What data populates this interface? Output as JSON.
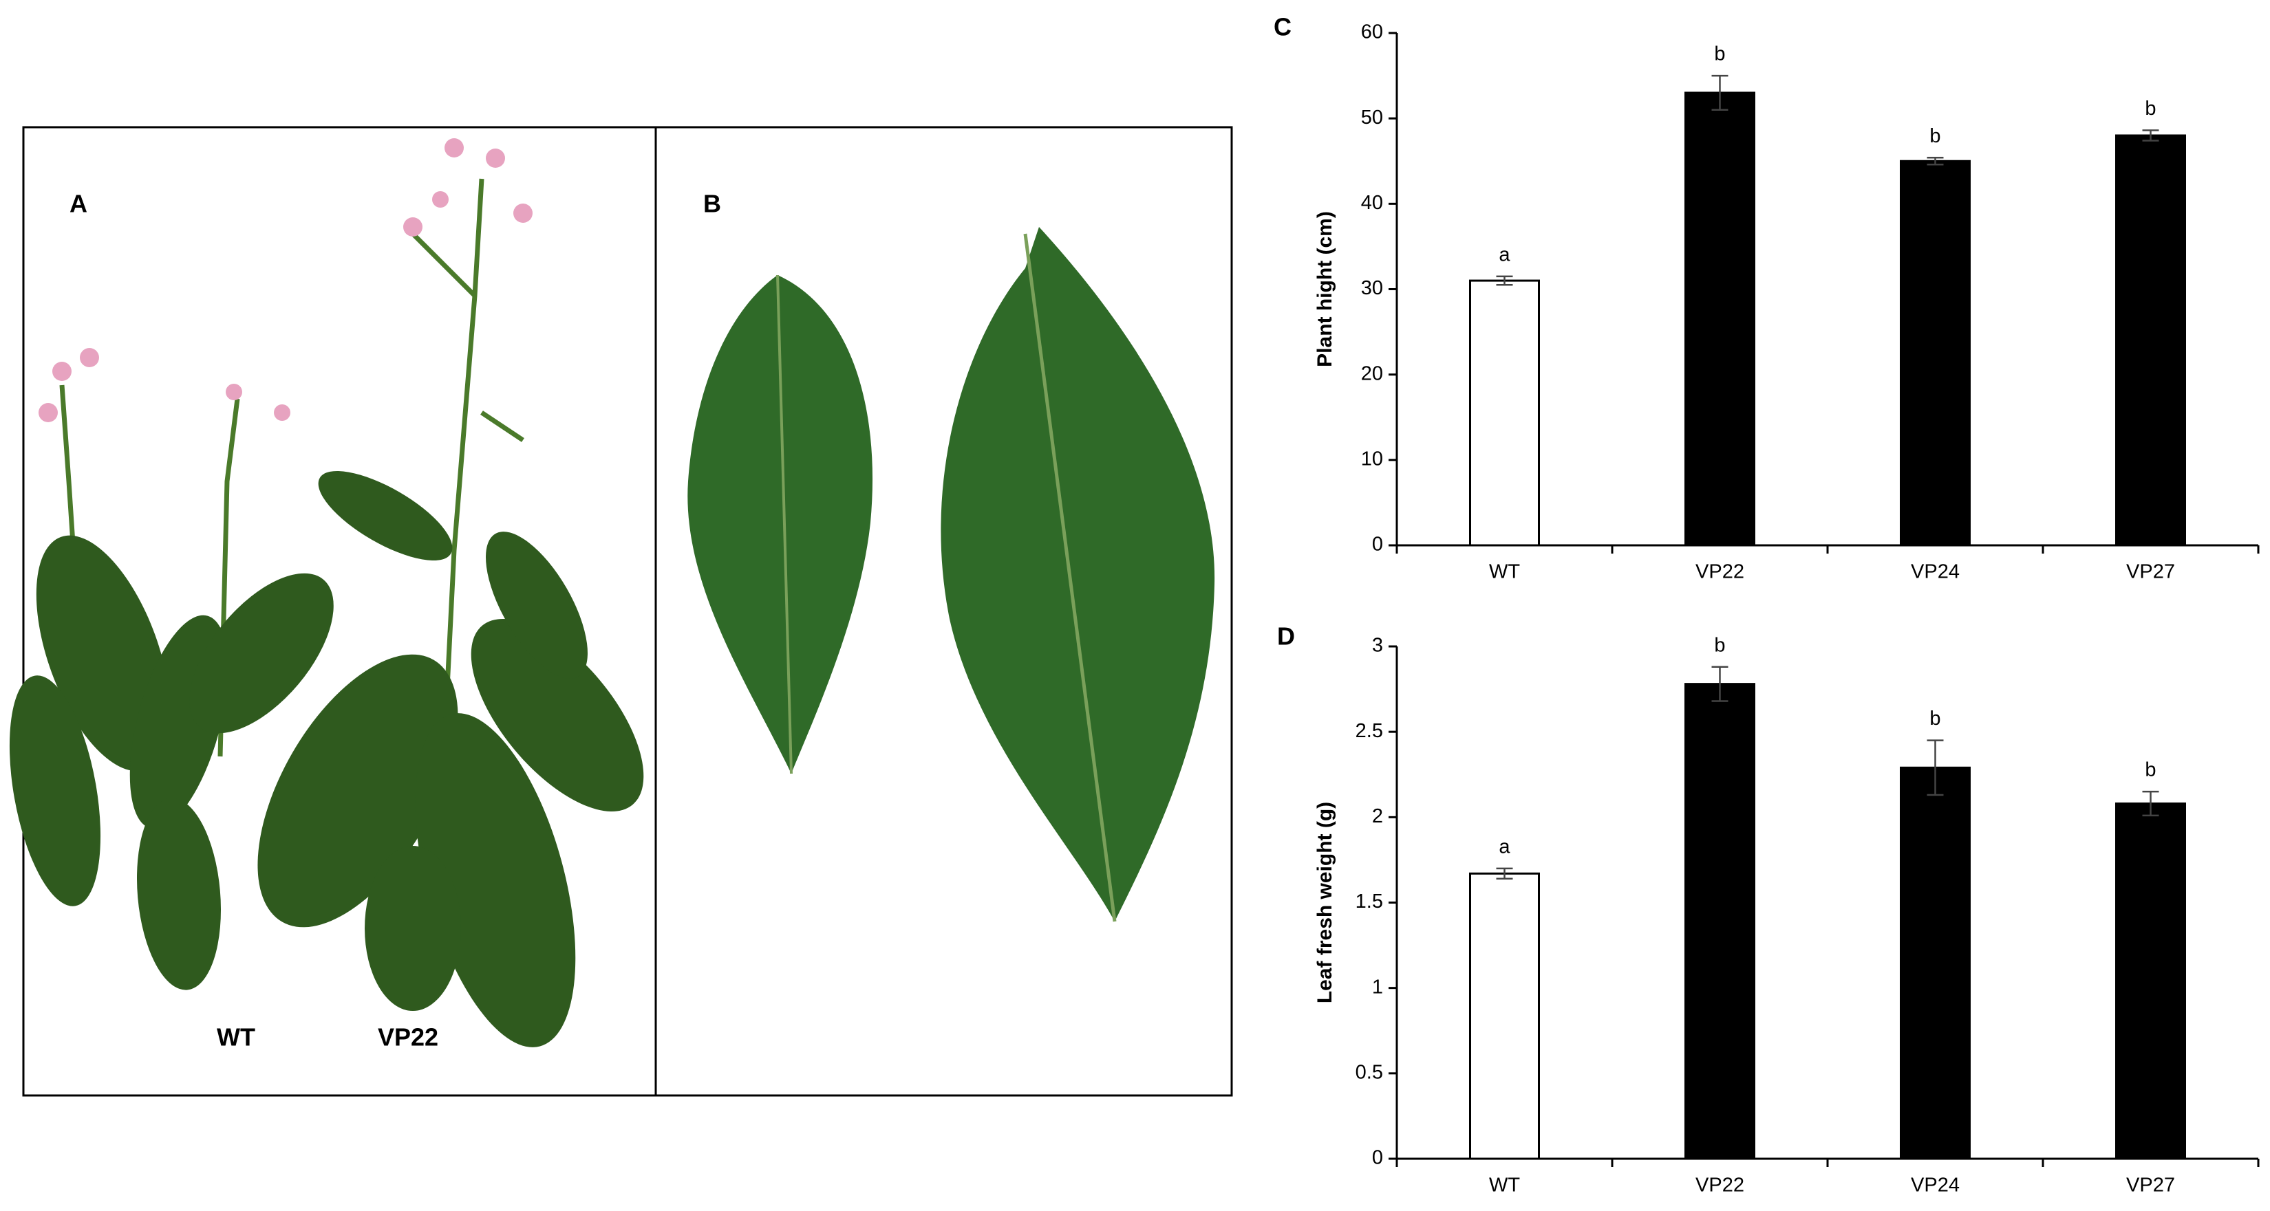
{
  "photo_panels": [
    {
      "label": "A",
      "captions": [
        "WT",
        "VP22"
      ]
    },
    {
      "label": "B"
    }
  ],
  "chart_data": [
    {
      "type": "bar",
      "panel_label": "C",
      "y_label": "Plant hight (cm)",
      "categories": [
        "WT",
        "VP22",
        "VP24",
        "VP27"
      ],
      "values": [
        31,
        53,
        45,
        48
      ],
      "errors": [
        0.5,
        2,
        0.4,
        0.6
      ],
      "annotations": [
        "a",
        "b",
        "b",
        "b"
      ],
      "colors": [
        "#ffffff",
        "#000000",
        "#000000",
        "#000000"
      ],
      "ylim": [
        0,
        60
      ],
      "yticks": [
        0,
        10,
        20,
        30,
        40,
        50,
        60
      ],
      "grid": false
    },
    {
      "type": "bar",
      "panel_label": "D",
      "y_label": "Leaf fresh weight (g)",
      "categories": [
        "WT",
        "VP22",
        "VP24",
        "VP27"
      ],
      "values": [
        1.67,
        2.78,
        2.29,
        2.08
      ],
      "errors": [
        0.03,
        0.1,
        0.16,
        0.07
      ],
      "annotations": [
        "a",
        "b",
        "b",
        "b"
      ],
      "colors": [
        "#ffffff",
        "#000000",
        "#000000",
        "#000000"
      ],
      "ylim": [
        0,
        3
      ],
      "yticks": [
        0,
        0.5,
        1,
        1.5,
        2,
        2.5,
        3
      ],
      "grid": false
    }
  ]
}
